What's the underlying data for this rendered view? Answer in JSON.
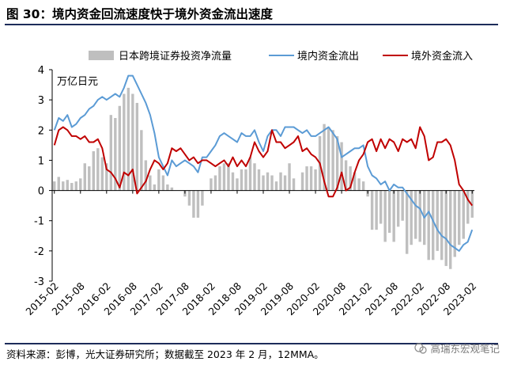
{
  "header": {
    "title": "图 30：境内资金回流速度快于境外资金流出速度"
  },
  "footer": {
    "source": "资料来源：彭博，光大证券研究所；数据截至 2023 年 2 月，12MMA。",
    "watermark": "高瑞东宏观笔记"
  },
  "icons": {
    "watermark": "wechat-icon"
  },
  "colors": {
    "bars": "#bfbfbf",
    "line_domestic": "#5b9bd5",
    "line_foreign": "#c00000"
  },
  "chart_data": {
    "type": "bar",
    "unit_label": "万亿日元",
    "ylim": [
      -3,
      4
    ],
    "yticks": [
      -3,
      -2,
      -1,
      0,
      1,
      2,
      3,
      4
    ],
    "ytick_labels": [
      "-3",
      "-2",
      "-1",
      "0",
      "1",
      "2",
      "3",
      "4"
    ],
    "xtick_labels": [
      "2015-02",
      "2015-08",
      "2016-02",
      "2016-08",
      "2017-02",
      "2017-08",
      "2018-02",
      "2018-08",
      "2019-02",
      "2019-08",
      "2020-02",
      "2020-08",
      "2021-02",
      "2021-08",
      "2022-02",
      "2022-08",
      "2023-02"
    ],
    "legend_position": "top",
    "grid": false,
    "x": [
      "2015-02",
      "2015-03",
      "2015-04",
      "2015-05",
      "2015-06",
      "2015-07",
      "2015-08",
      "2015-09",
      "2015-10",
      "2015-11",
      "2015-12",
      "2016-01",
      "2016-02",
      "2016-03",
      "2016-04",
      "2016-05",
      "2016-06",
      "2016-07",
      "2016-08",
      "2016-09",
      "2016-10",
      "2016-11",
      "2016-12",
      "2017-01",
      "2017-02",
      "2017-03",
      "2017-04",
      "2017-05",
      "2017-06",
      "2017-07",
      "2017-08",
      "2017-09",
      "2017-10",
      "2017-11",
      "2017-12",
      "2018-01",
      "2018-02",
      "2018-03",
      "2018-04",
      "2018-05",
      "2018-06",
      "2018-07",
      "2018-08",
      "2018-09",
      "2018-10",
      "2018-11",
      "2018-12",
      "2019-01",
      "2019-02",
      "2019-03",
      "2019-04",
      "2019-05",
      "2019-06",
      "2019-07",
      "2019-08",
      "2019-09",
      "2019-10",
      "2019-11",
      "2019-12",
      "2020-01",
      "2020-02",
      "2020-03",
      "2020-04",
      "2020-05",
      "2020-06",
      "2020-07",
      "2020-08",
      "2020-09",
      "2020-10",
      "2020-11",
      "2020-12",
      "2021-01",
      "2021-02",
      "2021-03",
      "2021-04",
      "2021-05",
      "2021-06",
      "2021-07",
      "2021-08",
      "2021-09",
      "2021-10",
      "2021-11",
      "2021-12",
      "2022-01",
      "2022-02",
      "2022-03",
      "2022-04",
      "2022-05",
      "2022-06",
      "2022-07",
      "2022-08",
      "2022-09",
      "2022-10",
      "2022-11",
      "2022-12",
      "2023-01",
      "2023-02"
    ],
    "series": [
      {
        "name": "日本跨境证券投资净流量",
        "type": "bar",
        "values": [
          0.3,
          0.45,
          0.3,
          0.35,
          0.25,
          0.3,
          0.4,
          0.9,
          0.8,
          1.3,
          1.4,
          1.1,
          0.9,
          2.5,
          2.4,
          2.8,
          3.2,
          3.4,
          3.2,
          2.9,
          2.0,
          1.0,
          0.5,
          0.2,
          0.7,
          0.5,
          0.2,
          0.1,
          0.0,
          0.0,
          -0.2,
          -0.5,
          -0.9,
          -0.9,
          -0.5,
          0.0,
          0.4,
          0.5,
          0.8,
          0.9,
          0.9,
          0.6,
          0.4,
          0.7,
          0.7,
          1.1,
          0.9,
          0.7,
          0.5,
          0.6,
          0.5,
          0.3,
          0.6,
          0.5,
          0.9,
          0.4,
          0.0,
          0.6,
          0.8,
          0.8,
          0.7,
          1.8,
          2.2,
          2.1,
          2.0,
          1.8,
          1.6,
          1.0,
          0.8,
          0.6,
          0.4,
          0.3,
          -0.2,
          -1.3,
          -1.3,
          -1.1,
          -1.7,
          -1.4,
          -1.7,
          -1.2,
          -1.0,
          -2.1,
          -1.8,
          -1.6,
          -1.7,
          -1.8,
          -2.3,
          -2.3,
          -2.0,
          -2.3,
          -2.5,
          -2.6,
          -2.2,
          -1.8,
          -1.6,
          -1.1,
          -0.9
        ]
      },
      {
        "name": "境内资金流出",
        "type": "line",
        "values": [
          2.0,
          2.4,
          2.3,
          2.5,
          2.1,
          2.2,
          2.4,
          2.5,
          2.7,
          2.8,
          3.0,
          3.1,
          3.0,
          3.1,
          3.2,
          3.1,
          3.4,
          3.8,
          3.8,
          3.5,
          3.2,
          2.9,
          2.5,
          1.9,
          1.1,
          0.8,
          0.5,
          1.0,
          0.8,
          0.9,
          1.0,
          0.9,
          0.8,
          0.6,
          1.1,
          1.1,
          1.3,
          1.5,
          1.8,
          1.9,
          1.8,
          1.7,
          1.6,
          1.9,
          1.8,
          1.8,
          2.0,
          1.6,
          1.3,
          1.8,
          2.0,
          2.0,
          1.8,
          2.1,
          2.1,
          2.1,
          2.0,
          1.9,
          2.0,
          1.8,
          1.8,
          1.9,
          2.0,
          2.1,
          1.9,
          1.7,
          1.1,
          1.2,
          1.3,
          1.4,
          1.4,
          1.5,
          0.8,
          0.5,
          0.4,
          0.2,
          0.3,
          0.0,
          0.2,
          0.1,
          0.1,
          -0.1,
          -0.3,
          -0.5,
          -0.6,
          -0.9,
          -0.7,
          -1.0,
          -1.3,
          -1.5,
          -1.6,
          -1.8,
          -1.9,
          -2.0,
          -1.8,
          -1.7,
          -1.3
        ]
      },
      {
        "name": "境外资金流入",
        "type": "line",
        "values": [
          1.5,
          2.0,
          2.1,
          2.0,
          1.8,
          1.8,
          1.7,
          1.8,
          1.6,
          1.6,
          1.7,
          1.4,
          0.7,
          0.6,
          0.4,
          0.1,
          0.6,
          0.5,
          0.7,
          -0.1,
          0.1,
          0.3,
          0.7,
          1.0,
          0.9,
          0.7,
          0.9,
          1.4,
          1.3,
          1.4,
          1.2,
          1.0,
          1.1,
          0.9,
          1.0,
          1.0,
          0.9,
          0.8,
          0.9,
          1.0,
          0.8,
          1.1,
          0.8,
          1.0,
          0.8,
          1.1,
          1.6,
          1.3,
          1.1,
          1.3,
          2.0,
          1.6,
          1.6,
          1.4,
          1.5,
          1.6,
          1.8,
          1.3,
          1.4,
          1.2,
          1.1,
          0.9,
          0.3,
          -0.2,
          -0.2,
          0.1,
          0.6,
          0.0,
          0.1,
          0.6,
          1.0,
          1.2,
          1.6,
          1.7,
          1.3,
          1.7,
          1.4,
          1.7,
          1.6,
          1.3,
          1.7,
          1.6,
          1.7,
          1.4,
          2.1,
          1.8,
          1.0,
          1.1,
          1.6,
          1.6,
          1.7,
          1.5,
          1.0,
          0.2,
          0.0,
          -0.3,
          -0.5
        ]
      }
    ]
  }
}
